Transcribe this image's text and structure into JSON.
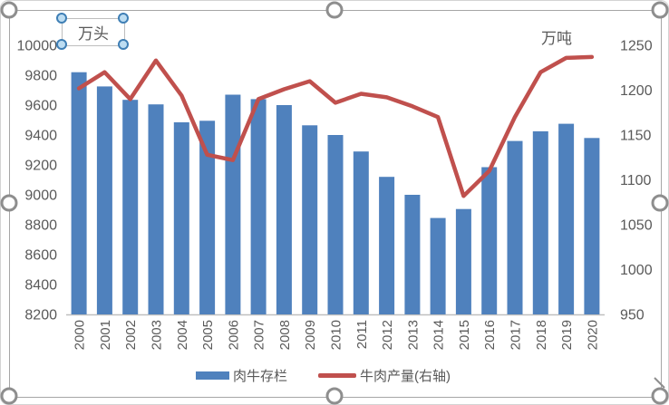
{
  "chart_data": {
    "type": "bar+line combo",
    "categories": [
      "2000",
      "2001",
      "2002",
      "2003",
      "2004",
      "2005",
      "2006",
      "2007",
      "2008",
      "2009",
      "2010",
      "2011",
      "2012",
      "2013",
      "2014",
      "2015",
      "2016",
      "2017",
      "2018",
      "2019",
      "2020"
    ],
    "series": [
      {
        "name": "肉牛存栏",
        "type": "bar",
        "axis": "left",
        "color": "#4F81BD",
        "values": [
          9820,
          9725,
          9635,
          9605,
          9485,
          9495,
          9670,
          9640,
          9600,
          9465,
          9400,
          9290,
          9120,
          9000,
          8845,
          8905,
          9185,
          9360,
          9425,
          9475,
          9380
        ]
      },
      {
        "name": "牛肉产量(右轴)",
        "type": "line",
        "axis": "right",
        "color": "#C0504D",
        "values": [
          1202,
          1220,
          1190,
          1233,
          1194,
          1128,
          1122,
          1190,
          1201,
          1210,
          1186,
          1196,
          1192,
          1182,
          1170,
          1082,
          1110,
          1170,
          1220,
          1236,
          1237
        ]
      }
    ],
    "left_axis": {
      "title": "万头",
      "min": 8200,
      "max": 10000,
      "step": 200,
      "ticks": [
        10000,
        9800,
        9600,
        9400,
        9200,
        9000,
        8800,
        8600,
        8400,
        8200
      ]
    },
    "right_axis": {
      "title": "万吨",
      "min": 950,
      "max": 1250,
      "step": 50,
      "ticks": [
        1250,
        1200,
        1150,
        1100,
        1050,
        1000,
        950
      ]
    },
    "grid": false,
    "legend_position": "bottom",
    "x_label_rotation": -90
  },
  "colors": {
    "bar": "#4F81BD",
    "line": "#C0504D",
    "axis_text": "#595959",
    "axis_line": "#BFBFBF",
    "selection_frame": "#A6A6A6"
  }
}
